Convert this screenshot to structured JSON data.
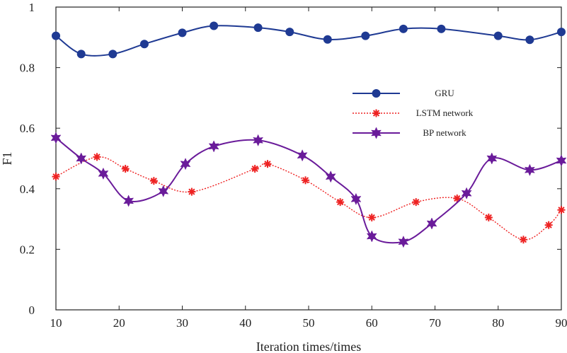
{
  "chart_data": {
    "type": "line",
    "title": "",
    "xlabel": "Iteration times/times",
    "ylabel": "F1",
    "xlim": [
      10,
      90
    ],
    "ylim": [
      0,
      1
    ],
    "x_ticks": [
      "10",
      "20",
      "30",
      "40",
      "50",
      "60",
      "70",
      "80",
      "90"
    ],
    "y_ticks": [
      "0",
      "0.2",
      "0.4",
      "0.6",
      "0.8",
      "1"
    ],
    "grid": false,
    "legend_position": "right",
    "series": [
      {
        "name": "GRU",
        "color": "#1f3a93",
        "marker": "circle",
        "line_style": "solid",
        "x": [
          10,
          14,
          19,
          24,
          30,
          35,
          42,
          47,
          53,
          59,
          65,
          71,
          80,
          85,
          90
        ],
        "y": [
          0.905,
          0.845,
          0.845,
          0.878,
          0.915,
          0.938,
          0.932,
          0.918,
          0.893,
          0.905,
          0.928,
          0.928,
          0.905,
          0.892,
          0.918
        ]
      },
      {
        "name": "LSTM network",
        "color": "#ee2222",
        "marker": "asterisk",
        "line_style": "dotted",
        "x": [
          10,
          16.5,
          21,
          25.5,
          31.5,
          41.5,
          43.5,
          49.5,
          55,
          60,
          67,
          73.5,
          78.5,
          84,
          88,
          90
        ],
        "y": [
          0.44,
          0.505,
          0.466,
          0.426,
          0.39,
          0.466,
          0.482,
          0.428,
          0.356,
          0.305,
          0.356,
          0.368,
          0.305,
          0.232,
          0.28,
          0.33
        ]
      },
      {
        "name": "BP network",
        "color": "#6a1b9a",
        "marker": "star",
        "line_style": "solid",
        "x": [
          10,
          14,
          17.5,
          21.5,
          27,
          30.5,
          35,
          42,
          49,
          53.5,
          57.5,
          60,
          65,
          69.5,
          75,
          79,
          85,
          90
        ],
        "y": [
          0.568,
          0.5,
          0.45,
          0.36,
          0.392,
          0.482,
          0.54,
          0.56,
          0.51,
          0.44,
          0.366,
          0.243,
          0.225,
          0.285,
          0.385,
          0.5,
          0.462,
          0.493
        ]
      }
    ]
  }
}
